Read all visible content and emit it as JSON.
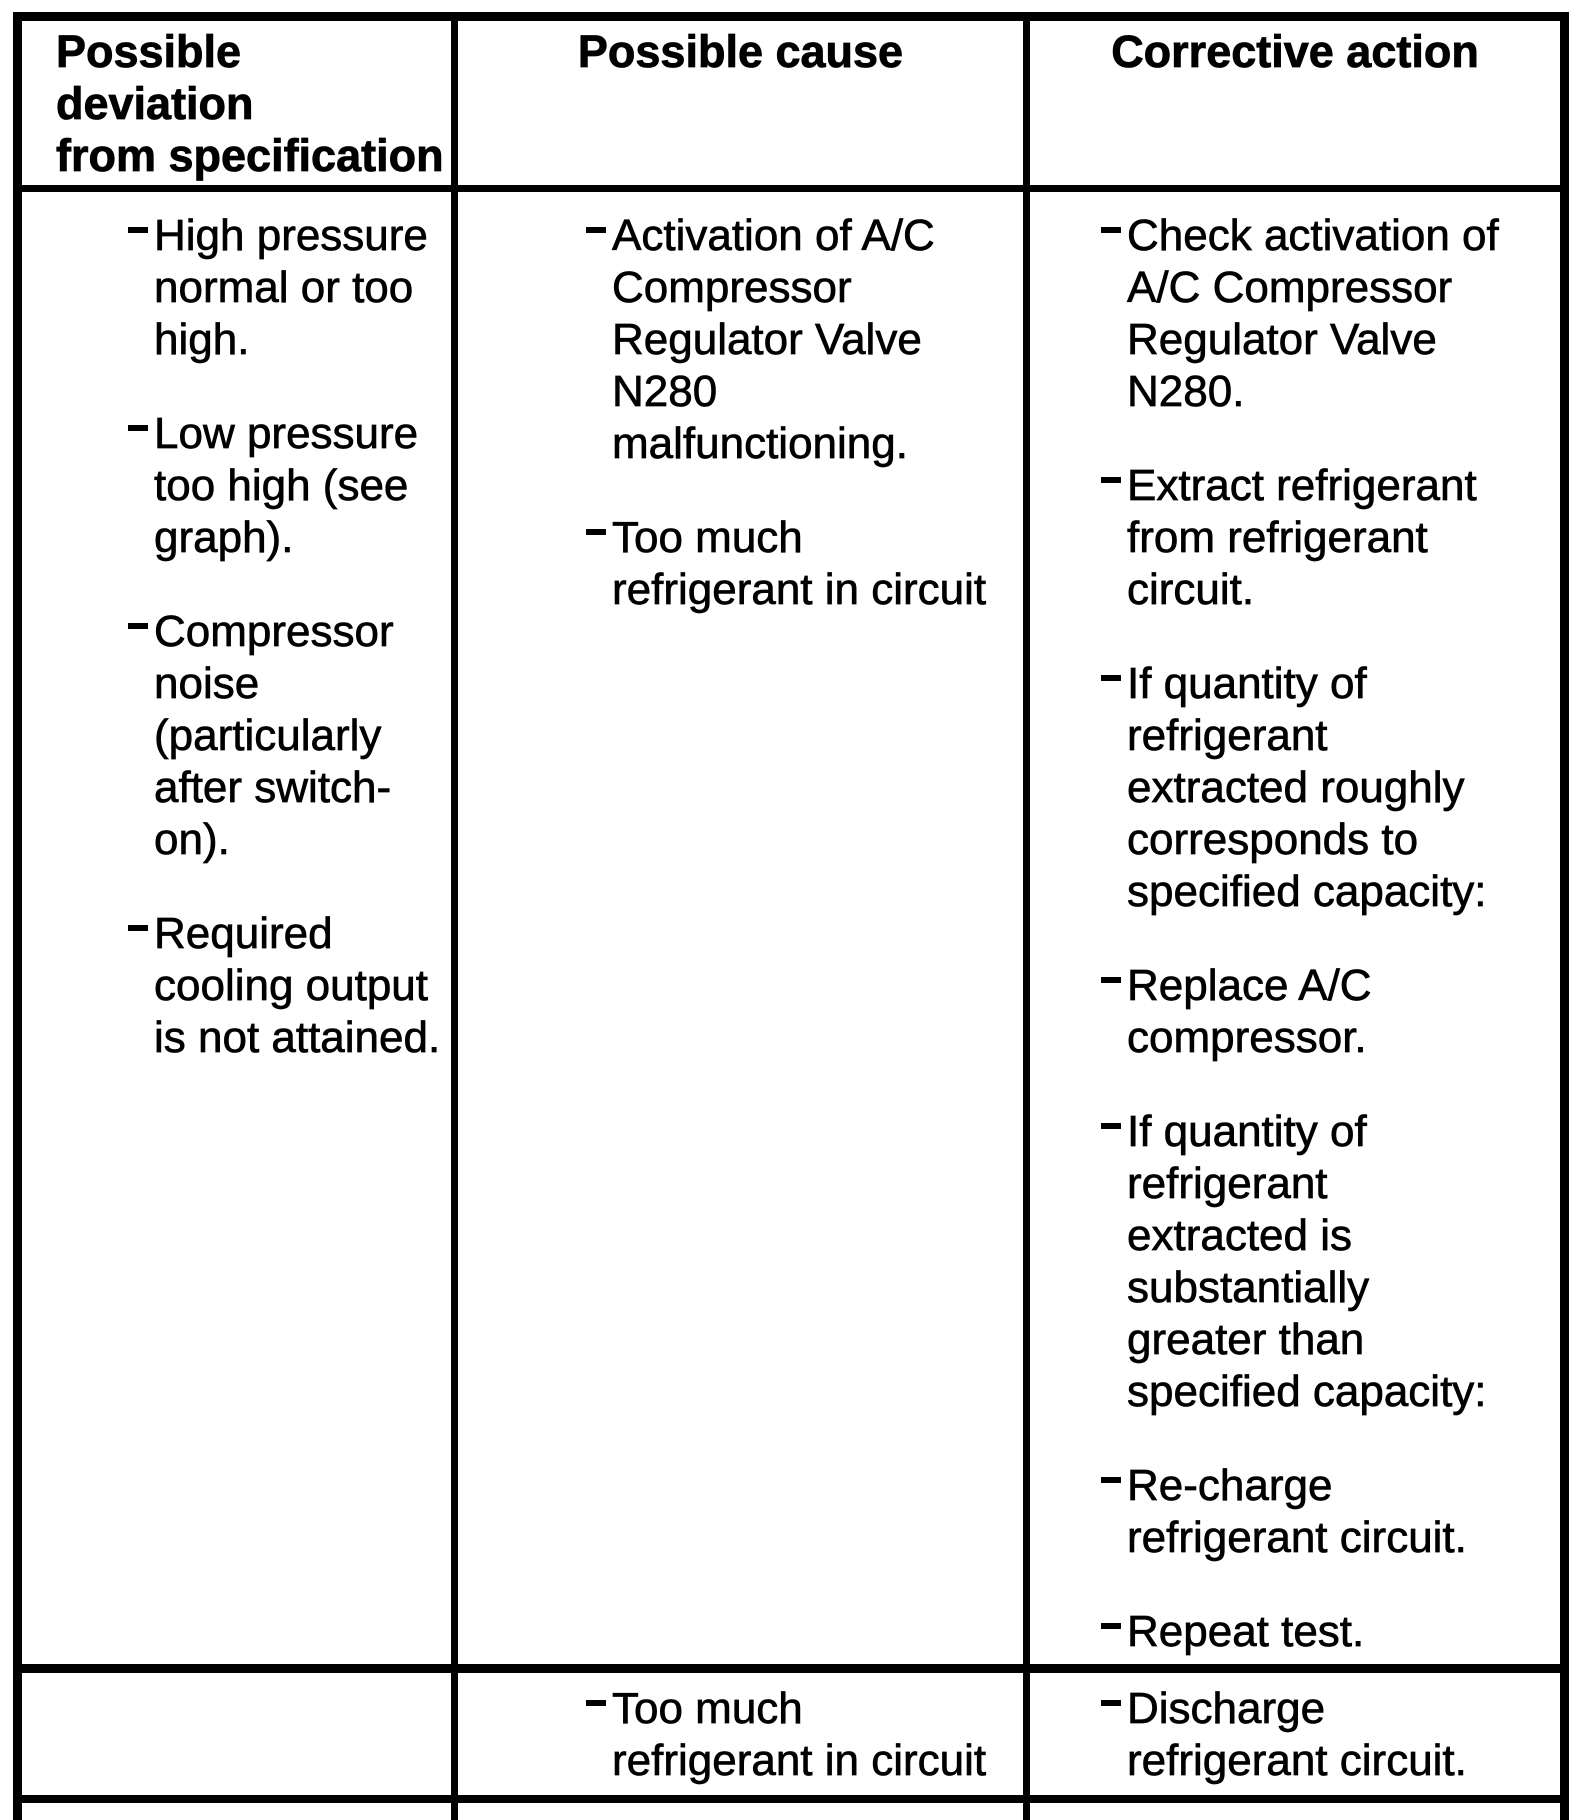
{
  "page": {
    "kind": "scanned-service-manual-table",
    "ink_color": "#000000",
    "paper_color": "#ffffff"
  },
  "table": {
    "columns": [
      {
        "id": "deviation",
        "label": "Possible deviation\nfrom specification"
      },
      {
        "id": "cause",
        "label": "Possible cause"
      },
      {
        "id": "action",
        "label": "Corrective action"
      }
    ],
    "rows": [
      {
        "deviation": [
          "High pressure normal or too high.",
          "Low pressure too high (see graph).",
          "Compressor noise (particularly after switch-on).",
          "Required cooling output is not attained."
        ],
        "cause": [
          "Activation of A/C Compressor Regulator Valve N280 malfunctioning.",
          "Too much refrigerant in circuit"
        ],
        "action": [
          "Check activation of A/C Compressor Regulator Valve N280.",
          "Extract refrigerant from refrigerant circuit.",
          "If quantity of refrigerant extracted roughly corresponds to specified capacity:",
          "Replace A/C compressor.",
          "If quantity of refrigerant extracted is substantially greater than specified capacity:",
          "Re-charge refrigerant circuit.",
          "Repeat test."
        ]
      },
      {
        "deviation": [],
        "cause": [
          "Too much refrigerant in circuit"
        ],
        "action": [
          "Discharge refrigerant circuit."
        ]
      }
    ]
  }
}
